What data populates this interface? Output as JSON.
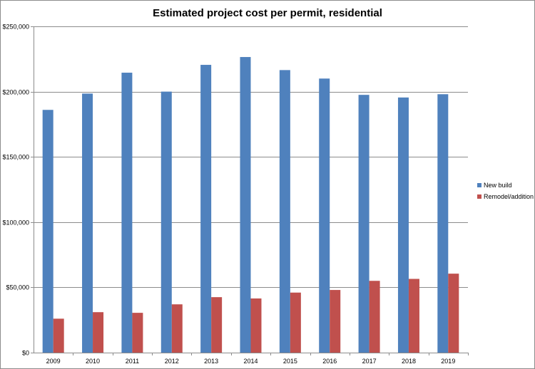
{
  "chart_data": {
    "type": "bar",
    "title": "Estimated project cost per permit, residential",
    "xlabel": "",
    "ylabel": "",
    "categories": [
      "2009",
      "2010",
      "2011",
      "2012",
      "2013",
      "2014",
      "2015",
      "2016",
      "2017",
      "2018",
      "2019"
    ],
    "series": [
      {
        "name": "New build",
        "color": "#4f81bd",
        "values": [
          186000,
          198500,
          214500,
          200000,
          220500,
          226500,
          216500,
          210000,
          197500,
          195500,
          198000
        ]
      },
      {
        "name": "Remodel/addition",
        "color": "#c0504d",
        "values": [
          26000,
          31000,
          30500,
          37000,
          42500,
          41500,
          46000,
          48000,
          55000,
          56500,
          60500
        ]
      }
    ],
    "ylim": [
      0,
      250000
    ],
    "yticks": [
      0,
      50000,
      100000,
      150000,
      200000,
      250000
    ],
    "ytick_labels": [
      "$0",
      "$50,000",
      "$100,000",
      "$150,000",
      "$200,000",
      "$250,000"
    ],
    "grid": true,
    "legend": "right"
  }
}
